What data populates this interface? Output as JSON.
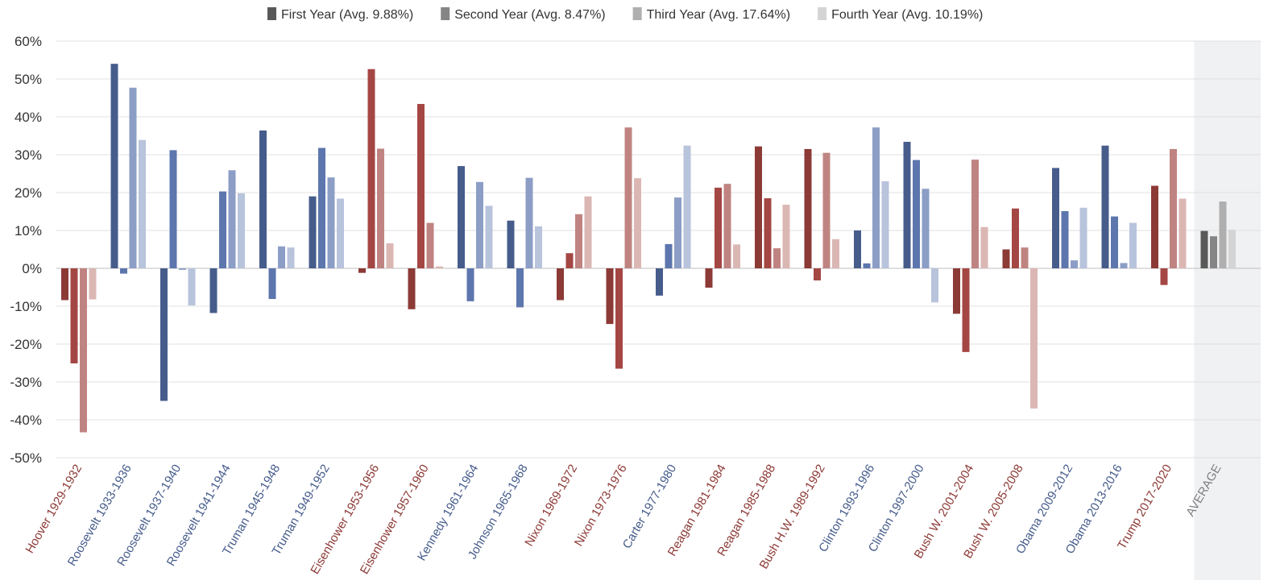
{
  "chart_data": {
    "type": "bar",
    "categories": [
      "Hoover 1929-1932",
      "Roosevelt 1933-1936",
      "Roosevelt 1937-1940",
      "Roosevelt 1941-1944",
      "Truman 1945-1948",
      "Truman 1949-1952",
      "Eisenhower 1953-1956",
      "Eisenhower 1957-1960",
      "Kennedy 1961-1964",
      "Johnson 1965-1968",
      "Nixon 1969-1972",
      "Nixon 1973-1976",
      "Carter 1977-1980",
      "Reagan 1981-1984",
      "Reagan 1985-1988",
      "Bush H.W. 1989-1992",
      "Clinton 1993-1996",
      "Clinton 1997-2000",
      "Bush W. 2001-2004",
      "Bush W. 2005-2008",
      "Obama 2009-2012",
      "Obama 2013-2016",
      "Trump 2017-2020",
      "AVERAGE"
    ],
    "party": [
      "R",
      "D",
      "D",
      "D",
      "D",
      "D",
      "R",
      "R",
      "D",
      "D",
      "R",
      "R",
      "D",
      "R",
      "R",
      "R",
      "D",
      "D",
      "R",
      "R",
      "D",
      "D",
      "R",
      "avg"
    ],
    "series": [
      {
        "name": "First Year (Avg. 9.88%)",
        "values": [
          -8.4,
          54.0,
          -35.0,
          -11.8,
          36.4,
          19.0,
          -1.2,
          -10.8,
          27.0,
          12.6,
          -8.4,
          -14.7,
          -7.2,
          -5.1,
          32.2,
          31.5,
          10.0,
          33.4,
          -12.0,
          5.0,
          26.5,
          32.4,
          21.8,
          9.88
        ]
      },
      {
        "name": "Second Year (Avg. 8.47%)",
        "values": [
          -25.1,
          -1.4,
          31.2,
          20.3,
          -8.1,
          31.8,
          52.6,
          43.4,
          -8.7,
          -10.3,
          4.0,
          -26.5,
          6.4,
          21.3,
          18.5,
          -3.2,
          1.3,
          28.6,
          -22.1,
          15.8,
          15.1,
          13.7,
          -4.4,
          8.47
        ]
      },
      {
        "name": "Third Year (Avg. 17.64%)",
        "values": [
          -43.3,
          47.7,
          -0.4,
          25.9,
          5.8,
          24.0,
          31.6,
          12.0,
          22.8,
          23.9,
          14.3,
          37.2,
          18.7,
          22.3,
          5.3,
          30.5,
          37.2,
          21.0,
          28.7,
          5.5,
          2.1,
          1.4,
          31.5,
          17.64
        ]
      },
      {
        "name": "Fourth Year (Avg. 10.19%)",
        "values": [
          -8.2,
          33.9,
          -9.8,
          19.8,
          5.5,
          18.4,
          6.6,
          0.5,
          16.5,
          11.1,
          19.0,
          23.8,
          32.4,
          6.3,
          16.8,
          7.7,
          23.0,
          -9.0,
          10.9,
          -37.0,
          16.0,
          12.0,
          18.4,
          10.19
        ]
      }
    ],
    "legend": [
      {
        "label": "First Year (Avg. 9.88%)",
        "color": "#595959"
      },
      {
        "label": "Second Year (Avg. 8.47%)",
        "color": "#858585"
      },
      {
        "label": "Third Year (Avg. 17.64%)",
        "color": "#afafaf"
      },
      {
        "label": "Fourth Year (Avg. 10.19%)",
        "color": "#d4d4d4"
      }
    ],
    "legend_position": "top-center",
    "ylim": [
      -50,
      60
    ],
    "yticks": [
      60,
      50,
      40,
      30,
      20,
      10,
      0,
      -10,
      -20,
      -30,
      -40,
      -50
    ],
    "ytick_labels": [
      "60%",
      "50%",
      "40%",
      "30%",
      "20%",
      "10%",
      "0%",
      "-10%",
      "-20%",
      "-30%",
      "-40%",
      "-50%"
    ],
    "grid": true,
    "colors": {
      "R": [
        "#8c3a36",
        "#a44744",
        "#bf8481",
        "#dbb7b4"
      ],
      "D": [
        "#465c8b",
        "#5d76ad",
        "#8c9ec6",
        "#b8c3dc"
      ],
      "avg": [
        "#595959",
        "#858585",
        "#afafaf",
        "#d4d4d4"
      ],
      "label_R": "#8c3a36",
      "label_D": "#465c8b",
      "label_avg": "#7f7f7f",
      "avg_bg": "#f0f1f3",
      "grid": "#e0e0e0",
      "axis": "#bfbfbf"
    }
  }
}
